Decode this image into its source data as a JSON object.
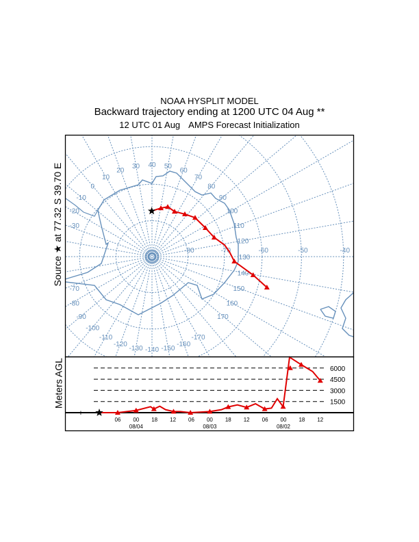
{
  "header": {
    "model": "NOAA HYSPLIT MODEL",
    "title": "Backward trajectory ending at 1200 UTC 04 Aug **",
    "init_time": "12 UTC 01 Aug",
    "init_source": "AMPS  Forecast Initialization"
  },
  "source_label": {
    "text_prefix": "Source",
    "icon": "star-icon",
    "at": "at",
    "lat": "77.32 S",
    "lon": "39.70 E"
  },
  "colors": {
    "map_lines": "#6690bb",
    "trajectory": "#e00000",
    "source_star": "#000000"
  },
  "map": {
    "projection": "south polar stereographic",
    "meridian_labels": [
      {
        "lon": 0,
        "text": "0"
      },
      {
        "lon": 10,
        "text": "10"
      },
      {
        "lon": 20,
        "text": "20"
      },
      {
        "lon": 30,
        "text": "30"
      },
      {
        "lon": 40,
        "text": "40"
      },
      {
        "lon": 50,
        "text": "50"
      },
      {
        "lon": 60,
        "text": "60"
      },
      {
        "lon": 70,
        "text": "70"
      },
      {
        "lon": 80,
        "text": "80"
      },
      {
        "lon": 90,
        "text": "90"
      },
      {
        "lon": 100,
        "text": "100"
      },
      {
        "lon": 110,
        "text": "110"
      },
      {
        "lon": 120,
        "text": "120"
      },
      {
        "lon": 130,
        "text": "130"
      },
      {
        "lon": 140,
        "text": "140"
      },
      {
        "lon": 150,
        "text": "150"
      },
      {
        "lon": 160,
        "text": "160"
      },
      {
        "lon": 170,
        "text": "170"
      },
      {
        "lon": -10,
        "text": "-10"
      },
      {
        "lon": -20,
        "text": "-20"
      },
      {
        "lon": -30,
        "text": "-30"
      },
      {
        "lon": -70,
        "text": "-70"
      },
      {
        "lon": -80,
        "text": "-80"
      },
      {
        "lon": -90,
        "text": "-90"
      },
      {
        "lon": -100,
        "text": "-100"
      },
      {
        "lon": -110,
        "text": "-110"
      },
      {
        "lon": -120,
        "text": "-120"
      },
      {
        "lon": -130,
        "text": "-130"
      },
      {
        "lon": -140,
        "text": "-140"
      },
      {
        "lon": -150,
        "text": "-150"
      },
      {
        "lon": -160,
        "text": "-160"
      },
      {
        "lon": -170,
        "text": "-170"
      }
    ],
    "latitude_labels": [
      {
        "lat": -80,
        "text": "-80"
      },
      {
        "lat": -70,
        "text": "-70"
      },
      {
        "lat": -60,
        "text": "-60"
      },
      {
        "lat": -50,
        "text": "-50"
      },
      {
        "lat": -40,
        "text": "-40"
      }
    ],
    "trajectory": [
      {
        "lat": -77.32,
        "lon": 39.7,
        "marker": "star"
      },
      {
        "lat": -76.3,
        "lon": 50.4,
        "marker": "triangle"
      },
      {
        "lat": -75.5,
        "lon": 57.5,
        "marker": "triangle"
      },
      {
        "lat": -76.0,
        "lon": 66.6,
        "marker": "triangle"
      },
      {
        "lat": -75.1,
        "lon": 77.7,
        "marker": "triangle"
      },
      {
        "lat": -73.9,
        "lon": 87.9,
        "marker": "triangle"
      },
      {
        "lat": -73.2,
        "lon": 101.7,
        "marker": "triangle"
      },
      {
        "lat": -72.0,
        "lon": 112.9,
        "marker": "triangle"
      },
      {
        "lat": -69.7,
        "lon": 120.9,
        "marker": "none"
      },
      {
        "lat": -68.6,
        "lon": 126.5,
        "marker": "none"
      },
      {
        "lat": -67.3,
        "lon": 133.3,
        "marker": "triangle"
      },
      {
        "lat": -61.9,
        "lon": 140.3,
        "marker": "triangle"
      },
      {
        "lat": -57.7,
        "lon": 145.0,
        "marker": "triangle"
      }
    ]
  },
  "height_panel": {
    "ylabel": "Meters AGL",
    "start_marker": "+",
    "height_ticks": [
      {
        "value": 6000,
        "text": "6000"
      },
      {
        "value": 4500,
        "text": "4500"
      },
      {
        "value": 3000,
        "text": "3000"
      },
      {
        "value": 1500,
        "text": "1500"
      }
    ],
    "time_ticks": [
      {
        "hours_back": 6,
        "text": "06"
      },
      {
        "hours_back": 12,
        "text": "00"
      },
      {
        "hours_back": 18,
        "text": "18"
      },
      {
        "hours_back": 24,
        "text": "12"
      },
      {
        "hours_back": 30,
        "text": "06"
      },
      {
        "hours_back": 36,
        "text": "00"
      },
      {
        "hours_back": 42,
        "text": "18"
      },
      {
        "hours_back": 48,
        "text": "12"
      },
      {
        "hours_back": 54,
        "text": "06"
      },
      {
        "hours_back": 60,
        "text": "00"
      },
      {
        "hours_back": 66,
        "text": "18"
      },
      {
        "hours_back": 72,
        "text": "12"
      }
    ],
    "date_labels": [
      {
        "hours_back": 12,
        "text": "08/04"
      },
      {
        "hours_back": 36,
        "text": "08/03"
      },
      {
        "hours_back": 60,
        "text": "08/02"
      }
    ],
    "profile": [
      {
        "h": 0,
        "m": 0
      },
      {
        "h": 6,
        "m": 0
      },
      {
        "h": 12,
        "m": 300
      },
      {
        "h": 16.7,
        "m": 800
      },
      {
        "h": 17.8,
        "m": 490
      },
      {
        "h": 19.7,
        "m": 860
      },
      {
        "h": 21.6,
        "m": 400
      },
      {
        "h": 24.2,
        "m": 150
      },
      {
        "h": 26.4,
        "m": 150
      },
      {
        "h": 29.7,
        "m": 0
      },
      {
        "h": 36,
        "m": 150
      },
      {
        "h": 39.8,
        "m": 400
      },
      {
        "h": 42,
        "m": 770
      },
      {
        "h": 45,
        "m": 1040
      },
      {
        "h": 48,
        "m": 710
      },
      {
        "h": 50.9,
        "m": 1200
      },
      {
        "h": 53.9,
        "m": 490
      },
      {
        "h": 56.1,
        "m": 610
      },
      {
        "h": 58,
        "m": 1870
      },
      {
        "h": 59.9,
        "m": 800
      },
      {
        "h": 62,
        "m": 7460
      },
      {
        "h": 65.8,
        "m": 6450
      },
      {
        "h": 69.5,
        "m": 5530
      },
      {
        "h": 72,
        "m": 4300
      }
    ]
  }
}
